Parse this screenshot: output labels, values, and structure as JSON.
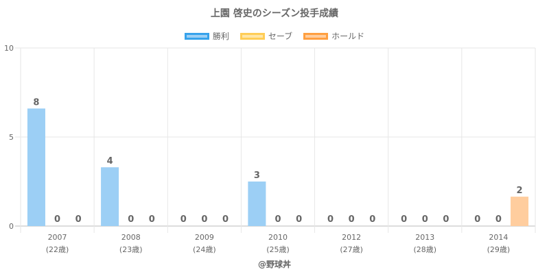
{
  "chart_data": {
    "type": "bar",
    "title": "上園 啓史のシーズン投手成績",
    "categories": [
      "2007",
      "2008",
      "2009",
      "2010",
      "2012",
      "2013",
      "2014"
    ],
    "category_sublabels": [
      "(22歳)",
      "(23歳)",
      "(24歳)",
      "(25歳)",
      "(27歳)",
      "(28歳)",
      "(29歳)"
    ],
    "series": [
      {
        "name": "勝利",
        "values": [
          8,
          4,
          0,
          3,
          0,
          0,
          0
        ],
        "color": "#9ccff5",
        "border": "#36a2eb"
      },
      {
        "name": "セーブ",
        "values": [
          0,
          0,
          0,
          0,
          0,
          0,
          0
        ],
        "color": "#ffe6a6",
        "border": "#ffcd56"
      },
      {
        "name": "ホールド",
        "values": [
          0,
          0,
          0,
          0,
          0,
          0,
          2
        ],
        "color": "#ffcd9e",
        "border": "#ff9f40"
      }
    ],
    "bar_heights": [
      [
        6.6,
        3.3,
        0,
        2.5,
        0,
        0,
        0
      ],
      [
        0,
        0,
        0,
        0,
        0,
        0,
        0
      ],
      [
        0,
        0,
        0,
        0,
        0,
        0,
        1.65
      ]
    ],
    "yticks": [
      0,
      5,
      10
    ],
    "ylim": [
      0,
      10
    ],
    "grid": true,
    "legend_position": "top"
  },
  "credit": "@野球丼"
}
